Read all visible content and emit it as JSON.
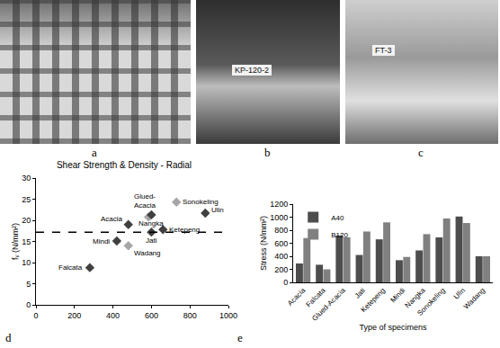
{
  "figure": {
    "photos": [
      {
        "panel_label": "a"
      },
      {
        "panel_label": "b",
        "sign": "KP-120-2"
      },
      {
        "panel_label": "c",
        "sign": "FT-3"
      }
    ]
  },
  "chart_data": [
    {
      "panel_label": "d",
      "type": "scatter",
      "title": "Shear Strength & Density - Radial",
      "y_label": "fᵥ (N/mm²)",
      "xlim": [
        0,
        1000
      ],
      "xticks": [
        0,
        200,
        400,
        600,
        800,
        1000
      ],
      "ylim": [
        0,
        30
      ],
      "yticks": [
        0,
        5,
        10,
        15,
        20,
        25,
        30
      ],
      "grid": false,
      "marker": "diamond",
      "points": [
        {
          "label": "Falcata",
          "x": 280,
          "y": 8.8,
          "color": "#404040"
        },
        {
          "label": "Mindi",
          "x": 420,
          "y": 15.1,
          "color": "#404040"
        },
        {
          "label": "Wadang",
          "x": 480,
          "y": 14,
          "color": "#a6a6a6"
        },
        {
          "label": "Acacia",
          "x": 480,
          "y": 19,
          "color": "#404040"
        },
        {
          "label": "Glued-Acacia",
          "x": 585,
          "y": 20.8,
          "color": "#a6a6a6"
        },
        {
          "label": "Nangka",
          "x": 600,
          "y": 21.3,
          "color": "#404040"
        },
        {
          "label": "Jati",
          "x": 600,
          "y": 17.2,
          "color": "#404040"
        },
        {
          "label": "Ketepeng",
          "x": 660,
          "y": 17.8,
          "color": "#404040"
        },
        {
          "label": "Sonokeling",
          "x": 730,
          "y": 24.3,
          "color": "#a6a6a6"
        },
        {
          "label": "Ulin",
          "x": 880,
          "y": 21.7,
          "color": "#404040"
        }
      ],
      "reference_line": {
        "value": 17.2,
        "line_style": "dash",
        "color": "#000000"
      }
    },
    {
      "panel_label": "e",
      "type": "bar",
      "x_label": "Type of specimens",
      "y_label": "Stress (N/mm²)",
      "categories": [
        "Acacia",
        "Falcata",
        "Glued-Acacia",
        "Jati",
        "Ketepeng",
        "Mindi",
        "Nangka",
        "Sonokeling",
        "Ulin",
        "Wadang"
      ],
      "series": [
        {
          "name": "A40",
          "color": "#4d4d4d",
          "values": [
            290,
            270,
            720,
            420,
            660,
            340,
            490,
            690,
            1010,
            400
          ]
        },
        {
          "name": "B120",
          "color": "#808080",
          "values": [
            680,
            200,
            690,
            780,
            920,
            390,
            740,
            980,
            910,
            400
          ]
        }
      ],
      "ylim": [
        0,
        1200
      ],
      "yticks": [
        0,
        200,
        400,
        600,
        800,
        1000,
        1200
      ],
      "grid": false,
      "legend": "upper left"
    }
  ]
}
